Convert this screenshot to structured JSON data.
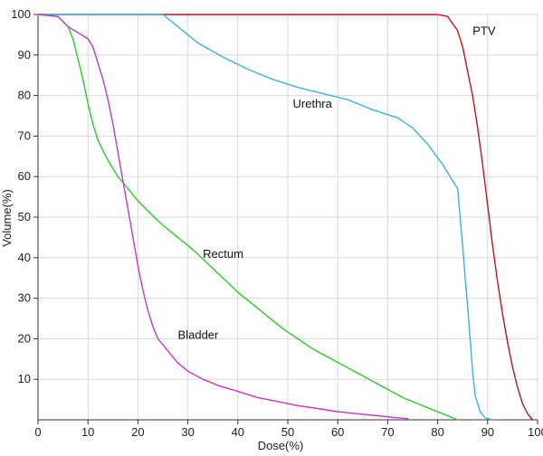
{
  "chart_data": {
    "type": "line",
    "title": "",
    "xlabel": "Dose(%)",
    "ylabel": "Volume(%)",
    "xlim": [
      0,
      100
    ],
    "ylim": [
      0,
      100
    ],
    "xticks": [
      0,
      10,
      20,
      30,
      40,
      50,
      60,
      70,
      80,
      90,
      100
    ],
    "yticks": [
      10,
      20,
      30,
      40,
      50,
      60,
      70,
      80,
      90,
      100
    ],
    "grid": true,
    "series": [
      {
        "name": "PTV",
        "color": "#c0141b",
        "label_at": [
          87,
          95
        ],
        "points": [
          [
            0,
            100
          ],
          [
            10,
            100
          ],
          [
            20,
            100
          ],
          [
            30,
            100
          ],
          [
            40,
            100
          ],
          [
            50,
            100
          ],
          [
            60,
            100
          ],
          [
            70,
            100
          ],
          [
            80,
            100
          ],
          [
            82,
            99.5
          ],
          [
            84,
            96
          ],
          [
            85,
            92
          ],
          [
            86,
            86
          ],
          [
            87,
            80
          ],
          [
            88,
            72
          ],
          [
            89,
            63
          ],
          [
            90,
            53
          ],
          [
            91,
            43
          ],
          [
            92,
            34
          ],
          [
            93,
            26
          ],
          [
            94,
            19
          ],
          [
            95,
            13
          ],
          [
            96,
            8
          ],
          [
            97,
            4
          ],
          [
            98,
            1.5
          ],
          [
            99,
            0
          ]
        ]
      },
      {
        "name": "Urethra",
        "color": "#3cb3d6",
        "label_at": [
          51,
          77
        ],
        "points": [
          [
            0,
            100
          ],
          [
            25,
            100
          ],
          [
            28,
            97
          ],
          [
            32,
            93
          ],
          [
            37,
            89.5
          ],
          [
            42,
            86.5
          ],
          [
            47,
            84
          ],
          [
            52,
            82
          ],
          [
            57,
            80.5
          ],
          [
            62,
            79
          ],
          [
            67,
            76.5
          ],
          [
            72,
            74.5
          ],
          [
            75,
            72
          ],
          [
            78,
            68
          ],
          [
            81,
            63
          ],
          [
            83,
            59
          ],
          [
            84,
            57
          ],
          [
            84.5,
            50
          ],
          [
            85,
            43
          ],
          [
            85.5,
            35
          ],
          [
            86,
            28
          ],
          [
            86.5,
            20
          ],
          [
            87,
            12
          ],
          [
            87.5,
            6
          ],
          [
            88.5,
            2
          ],
          [
            89.5,
            0.5
          ],
          [
            91,
            0
          ]
        ]
      },
      {
        "name": "Rectum",
        "color": "#2ccb2c",
        "label_at": [
          33,
          40
        ],
        "points": [
          [
            0,
            100
          ],
          [
            4,
            99.5
          ],
          [
            6,
            97
          ],
          [
            7,
            94
          ],
          [
            8,
            89
          ],
          [
            9,
            84
          ],
          [
            10,
            78
          ],
          [
            11,
            73
          ],
          [
            12,
            69
          ],
          [
            14,
            64
          ],
          [
            16,
            60
          ],
          [
            18,
            57
          ],
          [
            20,
            54
          ],
          [
            22,
            51.5
          ],
          [
            25,
            48
          ],
          [
            28,
            45
          ],
          [
            31,
            42
          ],
          [
            34,
            38.5
          ],
          [
            37,
            35
          ],
          [
            40,
            31.5
          ],
          [
            43,
            28.5
          ],
          [
            46,
            25.5
          ],
          [
            49,
            22.5
          ],
          [
            52,
            20
          ],
          [
            55,
            17.5
          ],
          [
            58,
            15.5
          ],
          [
            61,
            13.5
          ],
          [
            64,
            11.5
          ],
          [
            67,
            9.5
          ],
          [
            70,
            7.5
          ],
          [
            73,
            5.5
          ],
          [
            76,
            4
          ],
          [
            79,
            2.5
          ],
          [
            82,
            1
          ],
          [
            84,
            0
          ]
        ]
      },
      {
        "name": "Bladder",
        "color": "#c13ac4",
        "label_at": [
          28,
          20
        ],
        "points": [
          [
            0,
            100
          ],
          [
            4,
            99.5
          ],
          [
            6,
            97
          ],
          [
            8,
            95.5
          ],
          [
            10,
            94
          ],
          [
            11,
            92
          ],
          [
            12,
            88
          ],
          [
            13,
            84
          ],
          [
            14,
            79
          ],
          [
            15,
            73
          ],
          [
            16,
            66
          ],
          [
            17,
            59
          ],
          [
            18,
            52
          ],
          [
            19,
            45
          ],
          [
            20,
            38
          ],
          [
            21,
            32
          ],
          [
            22,
            27
          ],
          [
            23,
            23
          ],
          [
            24,
            20
          ],
          [
            26,
            17
          ],
          [
            28,
            14
          ],
          [
            30,
            12
          ],
          [
            33,
            10
          ],
          [
            36,
            8.5
          ],
          [
            40,
            7
          ],
          [
            44,
            5.5
          ],
          [
            48,
            4.5
          ],
          [
            52,
            3.5
          ],
          [
            56,
            2.8
          ],
          [
            60,
            2
          ],
          [
            64,
            1.5
          ],
          [
            68,
            1
          ],
          [
            72,
            0.5
          ],
          [
            74,
            0.3
          ]
        ]
      }
    ]
  }
}
